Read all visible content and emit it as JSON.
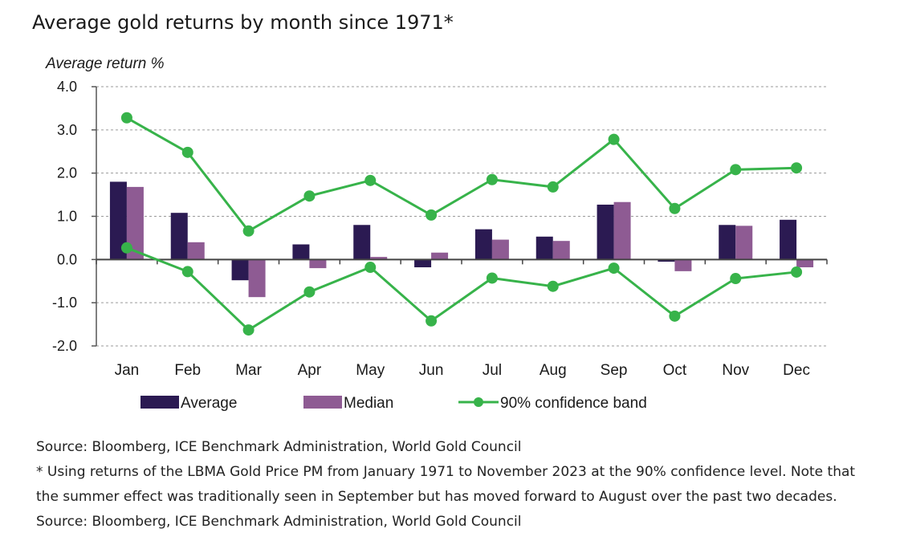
{
  "title": "Average gold returns by month since 1971*",
  "chart_data": {
    "type": "bar",
    "ylabel": "Average return %",
    "xlabel": "",
    "ylim": [
      -2.0,
      4.0
    ],
    "yticks": [
      "4.0",
      "3.0",
      "2.0",
      "1.0",
      "0.0",
      "-1.0",
      "-2.0"
    ],
    "ytick_values": [
      4,
      3,
      2,
      1,
      0,
      -1,
      -2
    ],
    "grid": "horizontal dashed",
    "legend_position": "bottom",
    "categories": [
      "Jan",
      "Feb",
      "Mar",
      "Apr",
      "May",
      "Jun",
      "Jul",
      "Aug",
      "Sep",
      "Oct",
      "Nov",
      "Dec"
    ],
    "series": [
      {
        "name": "Average",
        "kind": "bar",
        "color": "#2b1a52",
        "values": [
          1.8,
          1.08,
          -0.48,
          0.35,
          0.8,
          -0.18,
          0.7,
          0.53,
          1.27,
          -0.05,
          0.8,
          0.92
        ]
      },
      {
        "name": "Median",
        "kind": "bar",
        "color": "#8e5b93",
        "values": [
          1.68,
          0.4,
          -0.87,
          -0.2,
          0.06,
          0.16,
          0.46,
          0.43,
          1.33,
          -0.27,
          0.78,
          -0.18
        ]
      },
      {
        "name": "90% confidence band",
        "kind": "line",
        "color": "#37b34a",
        "upper": [
          3.28,
          2.48,
          0.66,
          1.47,
          1.83,
          1.03,
          1.85,
          1.68,
          2.78,
          1.18,
          2.08,
          2.12
        ],
        "lower": [
          0.27,
          -0.28,
          -1.63,
          -0.75,
          -0.18,
          -1.42,
          -0.43,
          -0.62,
          -0.2,
          -1.31,
          -0.44,
          -0.29
        ]
      }
    ]
  },
  "notes": {
    "source_1": "Source: Bloomberg, ICE Benchmark Administration, World Gold Council",
    "footnote_line_1": "* Using returns of the LBMA Gold Price PM from January 1971 to November 2023 at the 90% confidence level. Note that",
    "footnote_line_2": "the summer effect was traditionally seen in September but has moved forward to August over the past two decades.",
    "source_2": "Source: Bloomberg, ICE Benchmark Administration, World Gold Council"
  }
}
